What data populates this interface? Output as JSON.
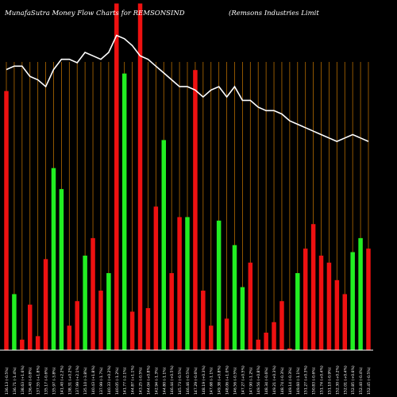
{
  "chart_data": {
    "type": "bar",
    "title_left": "MunafaSutra  Money  Flow  Charts for REMSONSIND",
    "title_right": "(Remsons Industries Limit",
    "colors": {
      "background": "#000000",
      "grid": "#b36b00",
      "up": "#22ee22",
      "down": "#ee1111",
      "line": "#ffffff",
      "text": "#ffffff",
      "axis": "#ffffff"
    },
    "bar_value_range": [
      0,
      100
    ],
    "line_value_range": [
      0,
      100
    ],
    "categories": [
      "136.13 (-0.5%)",
      "136.71 (-1.4%)",
      "138.63 (+1.6%)",
      "136.40 (-0.8%)",
      "137.55 (+1.8%)",
      "135.17 (-0.6%)",
      "135.97 (-3.8%)",
      "141.40 (+2.2%)",
      "138.31 (+0.2%)",
      "137.99 (+2.1%)",
      "135.10 (-3.8%)",
      "140.43 (+1.8%)",
      "137.99 (-1.7%)",
      "140.33 (+0.2%)",
      "140.05 (-1.2%)",
      "141.77 (-2.1%)",
      "144.87 (+1.1%)",
      "143.25 (-0.5%)",
      "144.04 (+0.8%)",
      "142.94 (-1.3%)",
      "144.80 (-1.1%)",
      "146.44 (+0.5%)",
      "145.73 (-0.5%)",
      "146.46 (-0.5%)",
      "147.29 (-0.6%)",
      "148.19 (+0.3%)",
      "147.68 (-1.1%)",
      "149.38 (+0.8%)",
      "148.06 (+1.0%)",
      "146.56 (-0.5%)",
      "147.27 (+0.5%)",
      "147.90 (-1.2%)",
      "149.56 (+0.8%)",
      "148.34 (-0.6%)",
      "149.21 (+0.3%)",
      "148.74 (-0.3%)",
      "149.14 (-0.3%)",
      "149.60 (-1.1%)",
      "151.27 (+0.3%)",
      "150.83 (-0.6%)",
      "151.74 (+0.4%)",
      "151.10 (-0.9%)",
      "152.30 (+0.2%)",
      "152.01 (+0.4%)",
      "152.85 (+0.6%)",
      "152.40 (-0.4%)",
      "152.45 (-0.5%)"
    ],
    "series": [
      {
        "name": "",
        "kind": "bar",
        "directions": [
          "down",
          "up",
          "down",
          "down",
          "down",
          "down",
          "up",
          "up",
          "down",
          "down",
          "up",
          "down",
          "down",
          "up",
          "down",
          "up",
          "down",
          "down",
          "down",
          "down",
          "up",
          "down",
          "down",
          "up",
          "down",
          "down",
          "down",
          "up",
          "down",
          "up",
          "up",
          "down",
          "down",
          "down",
          "down",
          "down",
          "down",
          "up",
          "down",
          "down",
          "down",
          "down",
          "down",
          "down",
          "up",
          "up",
          "down"
        ],
        "values": [
          74,
          16,
          3,
          13,
          4,
          26,
          52,
          46,
          7,
          14,
          27,
          32,
          17,
          22,
          99,
          79,
          11,
          99,
          12,
          41,
          60,
          22,
          38,
          38,
          80,
          17,
          7,
          37,
          9,
          30,
          18,
          25,
          3,
          5,
          8,
          14,
          0.5,
          22,
          29,
          36,
          27,
          25,
          20,
          16,
          28,
          32,
          29
        ]
      },
      {
        "name": "",
        "kind": "line",
        "values": [
          82,
          83,
          83,
          80,
          79,
          77,
          82,
          85,
          85,
          84,
          87,
          86,
          85,
          87,
          92,
          91,
          89,
          86,
          85,
          83,
          81,
          79,
          77,
          77,
          76,
          74,
          76,
          77,
          74,
          77,
          73,
          73,
          71,
          70,
          70,
          69,
          67,
          66,
          65,
          64,
          63,
          62,
          61,
          62,
          63,
          62,
          61
        ]
      }
    ]
  }
}
